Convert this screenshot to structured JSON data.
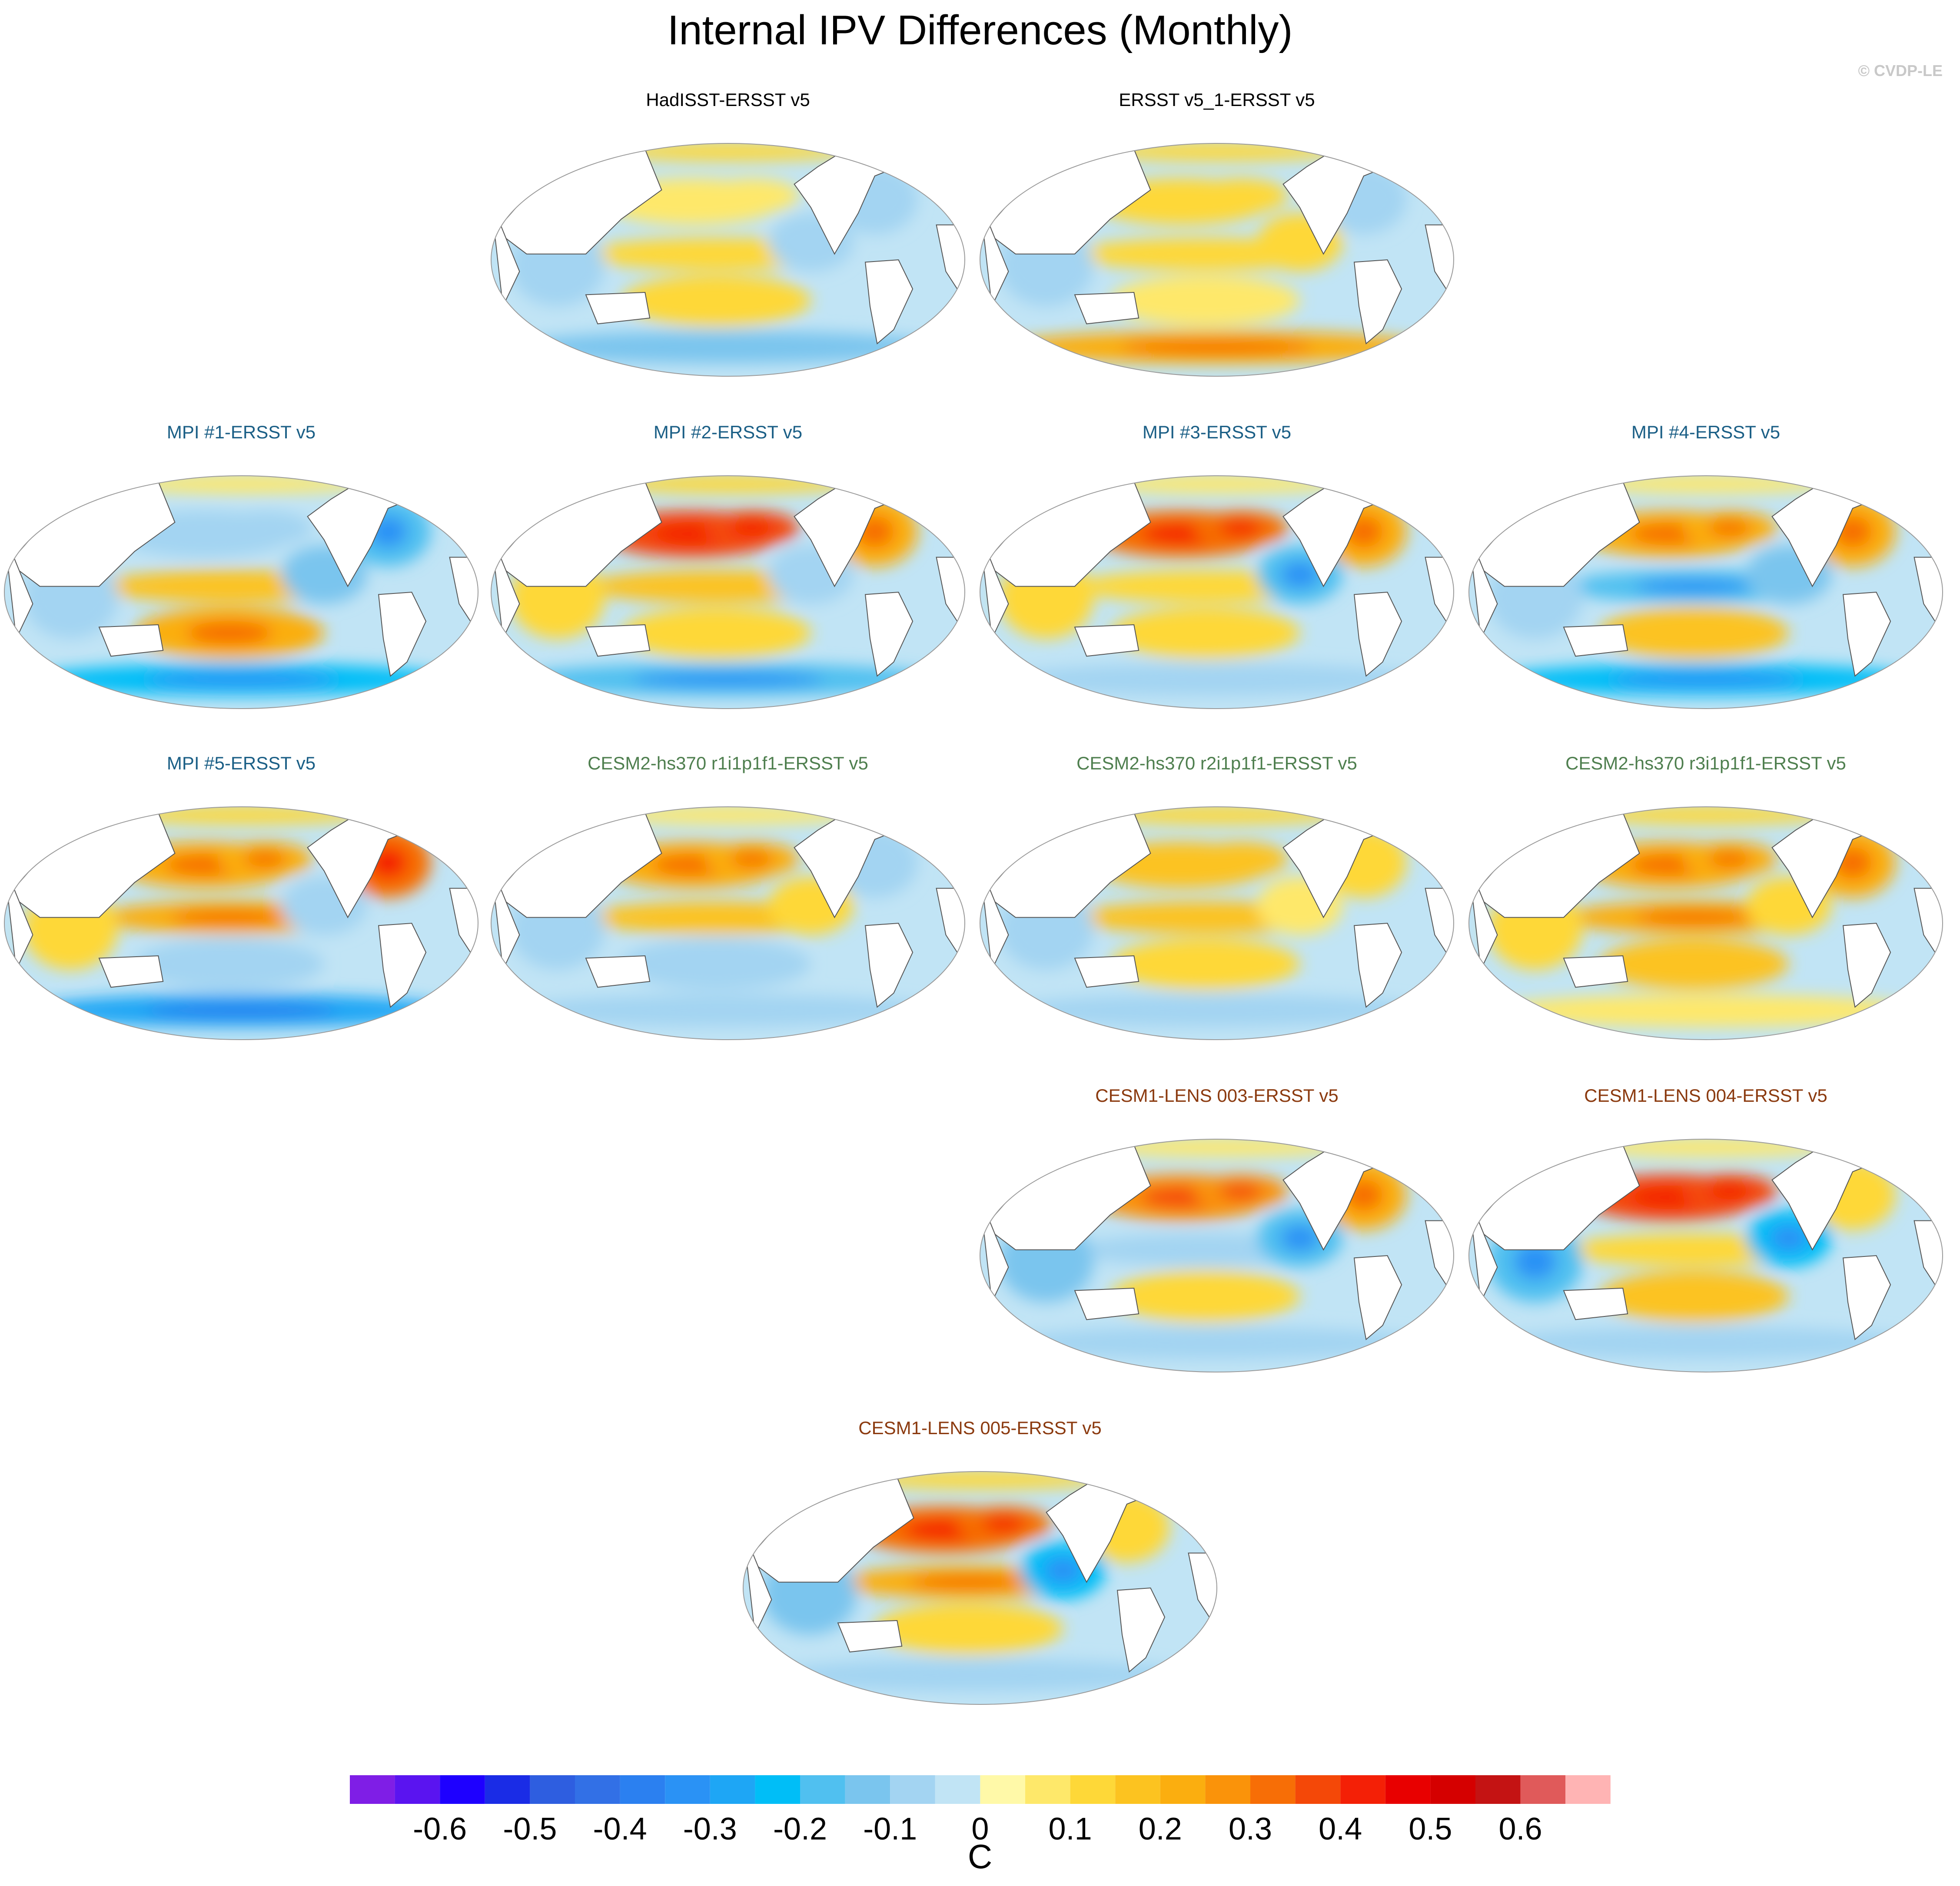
{
  "title": "Internal IPV Differences (Monthly)",
  "credit": "© CVDP-LE",
  "colors": {
    "ocean_outline": "#9a9a9a",
    "coast": "#555555",
    "title_obs": "#000000",
    "title_mpi": "#1b5f86",
    "title_cesm2": "#4f7f4f",
    "title_cesm1": "#8b3a0f"
  },
  "chart_data": {
    "type": "map-panel-grid",
    "projection": "Robinson (Pacific-centered)",
    "variable": "Internal IPV pattern difference vs ERSST v5",
    "units": "C",
    "colorbar": {
      "ticks": [
        "-0.6",
        "-0.5",
        "-0.4",
        "-0.3",
        "-0.2",
        "-0.1",
        "0",
        "0.1",
        "0.2",
        "0.3",
        "0.4",
        "0.5",
        "0.6"
      ],
      "levels": [
        -0.65,
        -0.6,
        -0.55,
        -0.5,
        -0.45,
        -0.4,
        -0.35,
        -0.3,
        -0.25,
        -0.2,
        -0.15,
        -0.1,
        -0.05,
        0,
        0.05,
        0.1,
        0.15,
        0.2,
        0.25,
        0.3,
        0.35,
        0.4,
        0.45,
        0.5,
        0.55,
        0.6,
        0.65
      ],
      "colors": [
        "#7f1ee6",
        "#5a14f0",
        "#1e00ff",
        "#1a2ce6",
        "#2e5ee0",
        "#3270e6",
        "#2b80f0",
        "#2a92f5",
        "#1ea6f5",
        "#00bef7",
        "#50c0f0",
        "#7ac5ee",
        "#a3d4f2",
        "#c1e4f5",
        "#fff9a8",
        "#fee86a",
        "#fed838",
        "#fcc320",
        "#fbae0f",
        "#fa930a",
        "#f76e06",
        "#f44808",
        "#f42006",
        "#e80000",
        "#d50000",
        "#c41313",
        "#e05a5a",
        "#ffb4b4"
      ]
    },
    "panels": [
      {
        "id": "hadisst",
        "title": "HadISST-ERSST v5",
        "group": "obs",
        "pattern": {
          "npac": 0.05,
          "trop": 0.1,
          "sp": 0.1,
          "so": -0.15,
          "natl": -0.1,
          "indian": -0.1,
          "epac": -0.1,
          "arctic": 0.1
        }
      },
      {
        "id": "ersst-v5-1",
        "title": "ERSST v5_1-ERSST v5",
        "group": "obs",
        "pattern": {
          "npac": 0.1,
          "trop": 0.1,
          "sp": 0.05,
          "so": 0.2,
          "natl": -0.1,
          "indian": -0.1,
          "epac": 0.1,
          "arctic": 0.1
        }
      },
      {
        "id": "mpi-1",
        "title": "MPI #1-ERSST v5",
        "group": "mpi",
        "pattern": {
          "npac": -0.1,
          "trop": 0.15,
          "sp": 0.2,
          "so": -0.25,
          "natl": -0.2,
          "indian": -0.1,
          "epac": -0.15,
          "arctic": 0.05
        }
      },
      {
        "id": "mpi-2",
        "title": "MPI #2-ERSST v5",
        "group": "mpi",
        "pattern": {
          "npac": 0.35,
          "trop": 0.15,
          "sp": 0.1,
          "so": -0.2,
          "natl": 0.2,
          "indian": 0.1,
          "epac": -0.1,
          "arctic": 0.1
        }
      },
      {
        "id": "mpi-3",
        "title": "MPI #3-ERSST v5",
        "group": "mpi",
        "pattern": {
          "npac": 0.3,
          "trop": 0.1,
          "sp": 0.1,
          "so": -0.1,
          "natl": 0.2,
          "indian": 0.1,
          "epac": -0.2,
          "arctic": 0.05
        }
      },
      {
        "id": "mpi-4",
        "title": "MPI #4-ERSST v5",
        "group": "mpi",
        "pattern": {
          "npac": 0.2,
          "trop": -0.2,
          "sp": 0.15,
          "so": -0.25,
          "natl": 0.2,
          "indian": -0.1,
          "epac": -0.15,
          "arctic": 0.05
        }
      },
      {
        "id": "mpi-5",
        "title": "MPI #5-ERSST v5",
        "group": "mpi",
        "pattern": {
          "npac": 0.2,
          "trop": 0.2,
          "sp": -0.1,
          "so": -0.3,
          "natl": 0.3,
          "indian": 0.1,
          "epac": -0.1,
          "arctic": 0.1
        }
      },
      {
        "id": "cesm2-r1",
        "title": "CESM2-hs370 r1i1p1f1-ERSST v5",
        "group": "cesm2",
        "pattern": {
          "npac": 0.2,
          "trop": 0.15,
          "sp": -0.1,
          "so": -0.1,
          "natl": -0.1,
          "indian": -0.1,
          "epac": 0.1,
          "arctic": 0.05
        }
      },
      {
        "id": "cesm2-r2",
        "title": "CESM2-hs370 r2i1p1f1-ERSST v5",
        "group": "cesm2",
        "pattern": {
          "npac": 0.15,
          "trop": 0.15,
          "sp": 0.1,
          "so": -0.1,
          "natl": 0.1,
          "indian": -0.1,
          "epac": 0.05,
          "arctic": 0.1
        }
      },
      {
        "id": "cesm2-r3",
        "title": "CESM2-hs370 r3i1p1f1-ERSST v5",
        "group": "cesm2",
        "pattern": {
          "npac": 0.2,
          "trop": 0.2,
          "sp": 0.15,
          "so": 0.05,
          "natl": 0.2,
          "indian": 0.1,
          "epac": 0.1,
          "arctic": 0.1
        }
      },
      {
        "id": "cesm1-003",
        "title": "CESM1-LENS 003-ERSST v5",
        "group": "cesm1",
        "pattern": {
          "npac": 0.25,
          "trop": -0.1,
          "sp": 0.1,
          "so": -0.1,
          "natl": 0.2,
          "indian": -0.15,
          "epac": -0.2,
          "arctic": 0.05
        }
      },
      {
        "id": "cesm1-004",
        "title": "CESM1-LENS 004-ERSST v5",
        "group": "cesm1",
        "pattern": {
          "npac": 0.35,
          "trop": 0.1,
          "sp": 0.15,
          "so": -0.1,
          "natl": 0.1,
          "indian": -0.2,
          "epac": -0.25,
          "arctic": 0.05
        }
      },
      {
        "id": "cesm1-005",
        "title": "CESM1-LENS 005-ERSST v5",
        "group": "cesm1",
        "pattern": {
          "npac": 0.3,
          "trop": 0.2,
          "sp": 0.1,
          "so": -0.1,
          "natl": 0.1,
          "indian": -0.15,
          "epac": -0.25,
          "arctic": 0.1
        }
      }
    ]
  }
}
